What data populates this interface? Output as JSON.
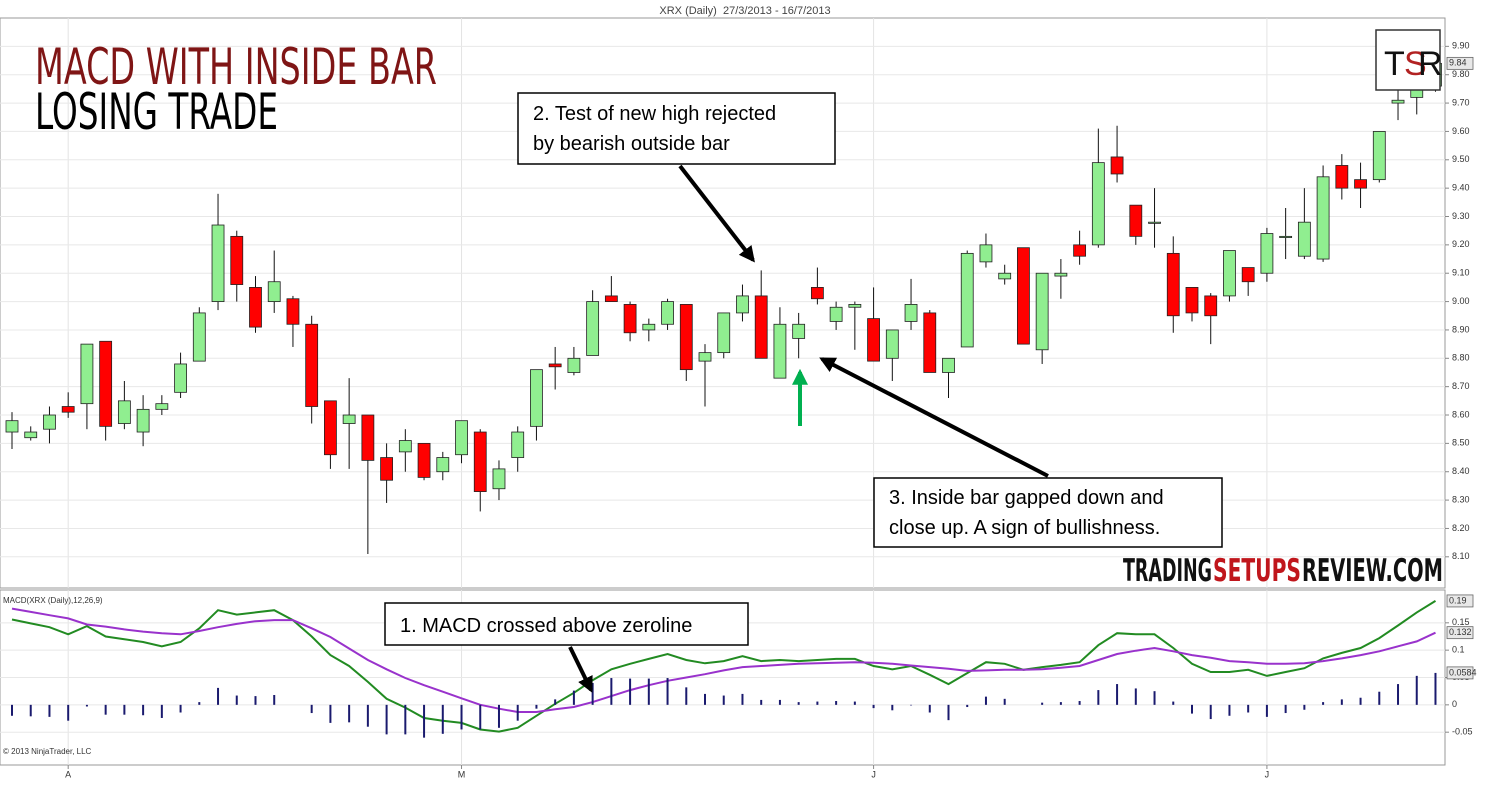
{
  "heading": {
    "title": "MACD WITH INSIDE BAR",
    "subtitle": "LOSING TRADE"
  },
  "logo": {
    "letters": [
      "T",
      "S",
      "R"
    ]
  },
  "watermark": {
    "parts": [
      "TRADING",
      "SETUPS",
      "REVIEW.COM"
    ]
  },
  "copyright": "© 2013 NinjaTrader, LLC",
  "annotations": [
    {
      "lines": [
        "1. MACD crossed above zeroline"
      ]
    },
    {
      "lines": [
        "2. Test of new high rejected",
        "by bearish outside bar"
      ]
    },
    {
      "lines": [
        "3. Inside bar gapped down and",
        "close up. A sign of bullishness."
      ]
    }
  ],
  "chart_data": [
    {
      "type": "candlestick",
      "title": "XRX (Daily)  27/3/2013 - 16/7/2013",
      "open": [
        8.54,
        8.52,
        8.55,
        8.63,
        8.64,
        8.86,
        8.57,
        8.54,
        8.62,
        8.68,
        8.79,
        9.0,
        9.23,
        9.05,
        9.0,
        9.01,
        8.92,
        8.65,
        8.57,
        8.6,
        8.45,
        8.47,
        8.5,
        8.4,
        8.46,
        8.54,
        8.34,
        8.45,
        8.56,
        8.78,
        8.75,
        8.81,
        9.02,
        8.99,
        8.9,
        8.92,
        8.99,
        8.79,
        8.82,
        8.96,
        9.02,
        8.73,
        8.87,
        9.05,
        8.93,
        8.98,
        8.94,
        8.8,
        8.93,
        8.96,
        8.75,
        8.84,
        9.14,
        9.08,
        9.19,
        8.83,
        9.09,
        9.2,
        9.2,
        9.51,
        9.34,
        9.28,
        9.17,
        9.05,
        9.02,
        9.02,
        9.12,
        9.1,
        9.23,
        9.16,
        9.15,
        9.48,
        9.43,
        9.43,
        9.7,
        9.72,
        9.76
      ],
      "high": [
        8.61,
        8.56,
        8.63,
        8.68,
        8.85,
        8.86,
        8.72,
        8.67,
        8.67,
        8.82,
        8.98,
        9.38,
        9.25,
        9.09,
        9.18,
        9.02,
        8.95,
        8.65,
        8.73,
        8.6,
        8.5,
        8.55,
        8.5,
        8.47,
        8.58,
        8.55,
        8.44,
        8.56,
        8.76,
        8.84,
        8.84,
        9.04,
        9.09,
        9.0,
        8.94,
        9.01,
        8.99,
        8.85,
        8.96,
        9.06,
        9.11,
        8.98,
        8.96,
        9.12,
        9.0,
        9.0,
        9.05,
        8.9,
        9.08,
        8.97,
        8.8,
        9.18,
        9.24,
        9.13,
        9.19,
        9.1,
        9.15,
        9.25,
        9.61,
        9.62,
        9.34,
        9.4,
        9.23,
        9.05,
        9.03,
        9.18,
        9.12,
        9.26,
        9.33,
        9.4,
        9.48,
        9.52,
        9.49,
        9.6,
        9.76,
        9.82,
        9.87
      ],
      "low": [
        8.48,
        8.51,
        8.5,
        8.59,
        8.55,
        8.51,
        8.55,
        8.49,
        8.6,
        8.66,
        8.79,
        8.97,
        9.0,
        8.89,
        8.96,
        8.84,
        8.57,
        8.41,
        8.41,
        8.11,
        8.29,
        8.4,
        8.37,
        8.37,
        8.43,
        8.26,
        8.3,
        8.4,
        8.51,
        8.69,
        8.74,
        8.81,
        9.0,
        8.86,
        8.86,
        8.9,
        8.72,
        8.63,
        8.8,
        8.93,
        8.8,
        8.73,
        8.8,
        8.99,
        8.9,
        8.83,
        8.79,
        8.72,
        8.9,
        8.75,
        8.66,
        8.84,
        9.12,
        9.06,
        8.85,
        8.78,
        9.01,
        9.13,
        9.19,
        9.42,
        9.2,
        9.19,
        8.89,
        8.93,
        8.85,
        9.0,
        9.02,
        9.07,
        9.15,
        9.15,
        9.14,
        9.36,
        9.33,
        9.42,
        9.64,
        9.66,
        9.74
      ],
      "close": [
        8.58,
        8.54,
        8.6,
        8.61,
        8.85,
        8.56,
        8.65,
        8.62,
        8.64,
        8.78,
        8.96,
        9.27,
        9.06,
        8.91,
        9.07,
        8.92,
        8.63,
        8.46,
        8.6,
        8.44,
        8.37,
        8.51,
        8.38,
        8.45,
        8.58,
        8.33,
        8.41,
        8.54,
        8.76,
        8.77,
        8.8,
        9.0,
        9.0,
        8.89,
        8.92,
        9.0,
        8.76,
        8.82,
        8.96,
        9.02,
        8.8,
        8.92,
        8.92,
        9.01,
        8.98,
        8.99,
        8.79,
        8.9,
        8.99,
        8.75,
        8.8,
        9.17,
        9.2,
        9.1,
        8.85,
        9.1,
        9.1,
        9.16,
        9.49,
        9.45,
        9.23,
        9.28,
        8.95,
        8.96,
        8.95,
        9.18,
        9.07,
        9.24,
        9.23,
        9.28,
        9.44,
        9.4,
        9.4,
        9.6,
        9.71,
        9.76,
        9.84
      ],
      "last_label": "9.84",
      "up_color": "#90ee90",
      "down_color": "#ff0000",
      "ylim": [
        7.99,
        10.0
      ],
      "yticks": [
        {
          "value": 8.1,
          "label": "8.10"
        },
        {
          "value": 8.2,
          "label": "8.20"
        },
        {
          "value": 8.3,
          "label": "8.30"
        },
        {
          "value": 8.4,
          "label": "8.40"
        },
        {
          "value": 8.5,
          "label": "8.50"
        },
        {
          "value": 8.6,
          "label": "8.60"
        },
        {
          "value": 8.7,
          "label": "8.70"
        },
        {
          "value": 8.8,
          "label": "8.80"
        },
        {
          "value": 8.9,
          "label": "8.90"
        },
        {
          "value": 9.0,
          "label": "9.00"
        },
        {
          "value": 9.1,
          "label": "9.10"
        },
        {
          "value": 9.2,
          "label": "9.20"
        },
        {
          "value": 9.3,
          "label": "9.30"
        },
        {
          "value": 9.4,
          "label": "9.40"
        },
        {
          "value": 9.5,
          "label": "9.50"
        },
        {
          "value": 9.6,
          "label": "9.60"
        },
        {
          "value": 9.7,
          "label": "9.70"
        },
        {
          "value": 9.8,
          "label": "9.80"
        },
        {
          "value": 9.9,
          "label": "9.90"
        }
      ],
      "grid": true
    },
    {
      "type": "line",
      "title": "MACD(XRX (Daily),12,26,9)",
      "categories": [
        null,
        null,
        null,
        "A",
        null,
        null,
        null,
        null,
        null,
        null,
        null,
        null,
        null,
        null,
        null,
        null,
        null,
        null,
        null,
        null,
        null,
        null,
        null,
        null,
        "M",
        null,
        null,
        null,
        null,
        null,
        null,
        null,
        null,
        null,
        null,
        null,
        null,
        null,
        null,
        null,
        null,
        null,
        null,
        null,
        null,
        null,
        "J",
        null,
        null,
        null,
        null,
        null,
        null,
        null,
        null,
        null,
        null,
        null,
        null,
        null,
        null,
        null,
        null,
        null,
        null,
        null,
        null,
        "J",
        null,
        null,
        null,
        null,
        null,
        null,
        null,
        null,
        null
      ],
      "series": [
        {
          "color": "#228b22",
          "style": "line",
          "last_label": "0.19",
          "values": [
            0.156,
            0.149,
            0.142,
            0.129,
            0.144,
            0.125,
            0.12,
            0.115,
            0.107,
            0.115,
            0.14,
            0.173,
            0.165,
            0.169,
            0.173,
            0.155,
            0.125,
            0.091,
            0.071,
            0.042,
            0.011,
            -0.005,
            -0.024,
            -0.029,
            -0.033,
            -0.045,
            -0.049,
            -0.042,
            -0.02,
            0.002,
            0.022,
            0.045,
            0.065,
            0.075,
            0.084,
            0.093,
            0.082,
            0.076,
            0.08,
            0.089,
            0.08,
            0.082,
            0.08,
            0.082,
            0.084,
            0.084,
            0.071,
            0.065,
            0.071,
            0.055,
            0.038,
            0.058,
            0.078,
            0.075,
            0.064,
            0.069,
            0.073,
            0.078,
            0.109,
            0.131,
            0.129,
            0.129,
            0.104,
            0.075,
            0.06,
            0.06,
            0.064,
            0.053,
            0.06,
            0.067,
            0.085,
            0.095,
            0.104,
            0.122,
            0.145,
            0.169,
            0.19
          ]
        },
        {
          "color": "#9932cc",
          "style": "line",
          "last_label": "0.132",
          "values": [
            0.176,
            0.17,
            0.164,
            0.158,
            0.147,
            0.143,
            0.138,
            0.134,
            0.131,
            0.129,
            0.135,
            0.142,
            0.148,
            0.153,
            0.155,
            0.155,
            0.14,
            0.124,
            0.103,
            0.082,
            0.065,
            0.049,
            0.036,
            0.024,
            0.012,
            0.0,
            -0.007,
            -0.013,
            -0.013,
            -0.008,
            -0.004,
            0.005,
            0.016,
            0.027,
            0.036,
            0.044,
            0.05,
            0.056,
            0.063,
            0.069,
            0.071,
            0.073,
            0.075,
            0.076,
            0.077,
            0.078,
            0.077,
            0.075,
            0.072,
            0.069,
            0.066,
            0.062,
            0.063,
            0.064,
            0.064,
            0.065,
            0.068,
            0.071,
            0.082,
            0.093,
            0.099,
            0.104,
            0.098,
            0.091,
            0.086,
            0.08,
            0.078,
            0.075,
            0.075,
            0.076,
            0.08,
            0.085,
            0.091,
            0.098,
            0.107,
            0.116,
            0.132
          ]
        },
        {
          "color": "#1a1a6e",
          "style": "bar",
          "last_label": "0.0584",
          "values": [
            -0.02,
            -0.021,
            -0.022,
            -0.029,
            -0.003,
            -0.018,
            -0.018,
            -0.019,
            -0.024,
            -0.014,
            0.005,
            0.031,
            0.017,
            0.016,
            0.018,
            0.0,
            -0.015,
            -0.033,
            -0.032,
            -0.04,
            -0.054,
            -0.054,
            -0.06,
            -0.053,
            -0.045,
            -0.045,
            -0.042,
            -0.029,
            -0.007,
            0.01,
            0.026,
            0.04,
            0.049,
            0.048,
            0.048,
            0.049,
            0.032,
            0.02,
            0.017,
            0.02,
            0.009,
            0.009,
            0.005,
            0.006,
            0.007,
            0.006,
            -0.006,
            -0.01,
            -0.001,
            -0.014,
            -0.028,
            -0.004,
            0.015,
            0.011,
            0.0,
            0.004,
            0.005,
            0.007,
            0.027,
            0.038,
            0.03,
            0.025,
            0.006,
            -0.016,
            -0.026,
            -0.02,
            -0.014,
            -0.022,
            -0.015,
            -0.009,
            0.005,
            0.01,
            0.013,
            0.024,
            0.038,
            0.053,
            0.0584
          ]
        }
      ],
      "ylim": [
        -0.11,
        0.21
      ],
      "yticks": [
        -0.05,
        0,
        0.05,
        0.1,
        0.15
      ],
      "grid": true
    }
  ]
}
